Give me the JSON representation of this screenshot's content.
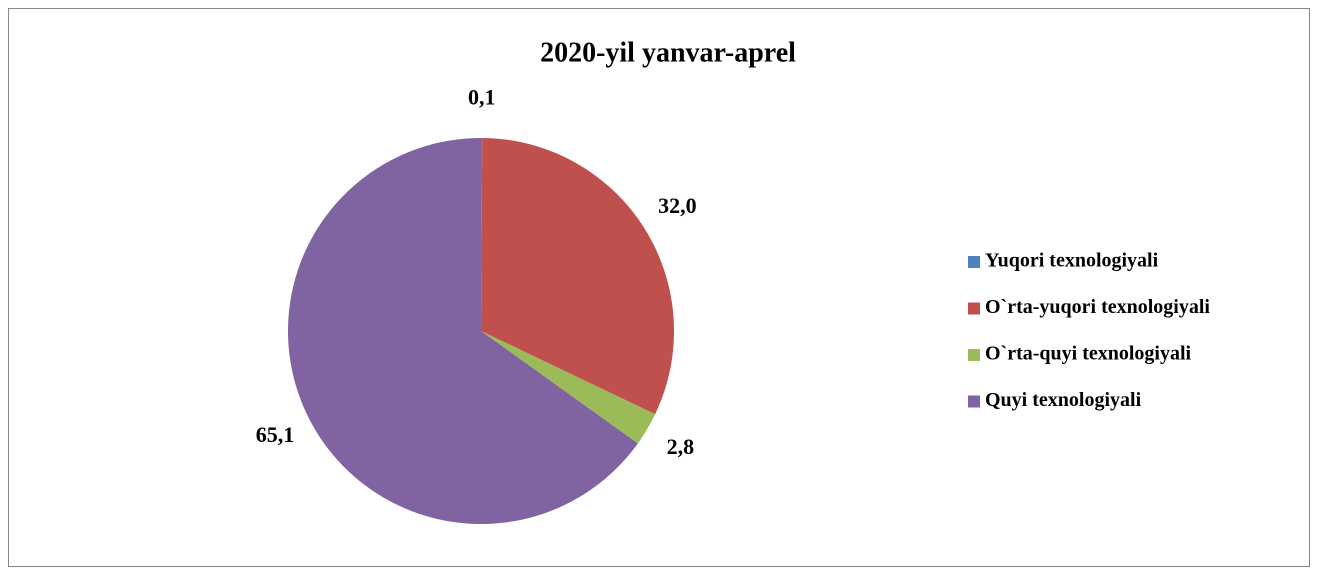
{
  "chart_data": {
    "type": "pie",
    "title": "2020-yil yanvar-aprel",
    "categories": [
      "Yuqori texnologiyali",
      "O`rta-yuqori texnologiyali",
      "O`rta-quyi texnologiyali",
      "Quyi texnologiyali"
    ],
    "values": [
      0.1,
      32.0,
      2.8,
      65.1
    ],
    "value_labels": [
      "0,1",
      "32,0",
      "2,8",
      "65,1"
    ],
    "colors": [
      "#4f81bd",
      "#c0504d",
      "#9bbb59",
      "#8064a2"
    ],
    "legend": "right"
  }
}
